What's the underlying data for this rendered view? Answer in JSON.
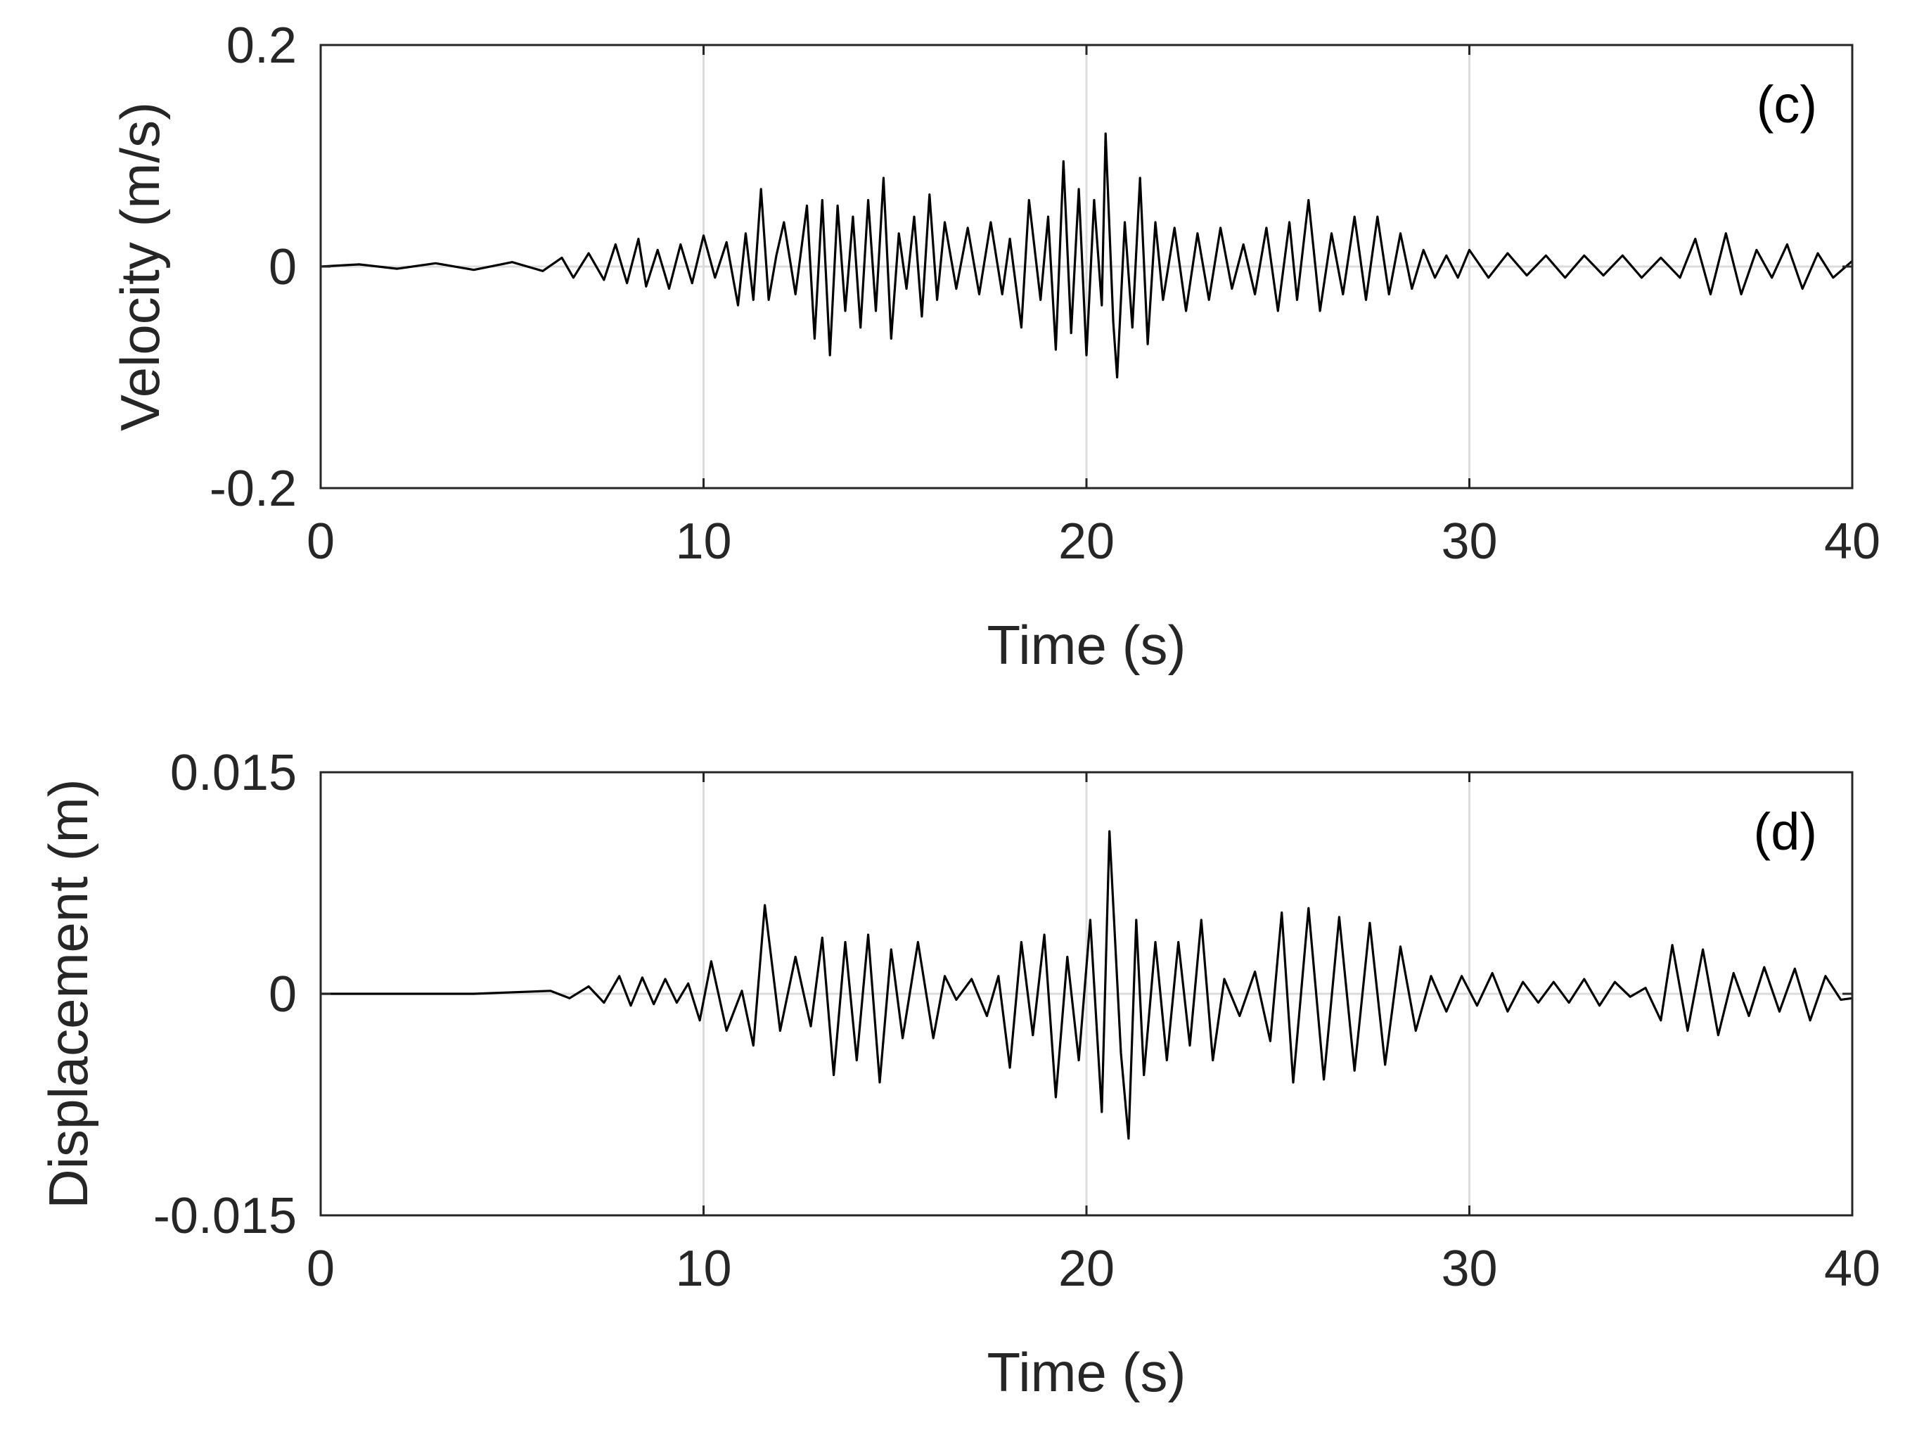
{
  "chart_data": [
    {
      "type": "line",
      "panel": "(c)",
      "xlabel": "Time (s)",
      "ylabel": "Velocity (m/s)",
      "xlim": [
        0,
        40
      ],
      "ylim": [
        -0.2,
        0.2
      ],
      "xticks": [
        0,
        10,
        20,
        30,
        40
      ],
      "xtick_labels": [
        "0",
        "10",
        "20",
        "30",
        "40"
      ],
      "yticks": [
        -0.2,
        0,
        0.2
      ],
      "ytick_labels": [
        "-0.2",
        "0",
        "0.2"
      ],
      "grid": "vertical",
      "line_color": "#000000",
      "series": [
        {
          "x": [
            0,
            1,
            2,
            3,
            4,
            5,
            5.8,
            6.3,
            6.6,
            7.0,
            7.4,
            7.7,
            8.0,
            8.3,
            8.5,
            8.8,
            9.1,
            9.4,
            9.7,
            10.0,
            10.3,
            10.6,
            10.9,
            11.1,
            11.3,
            11.5,
            11.7,
            11.9,
            12.1,
            12.4,
            12.7,
            12.9,
            13.1,
            13.3,
            13.5,
            13.7,
            13.9,
            14.1,
            14.3,
            14.5,
            14.7,
            14.9,
            15.1,
            15.3,
            15.5,
            15.7,
            15.9,
            16.1,
            16.3,
            16.6,
            16.9,
            17.2,
            17.5,
            17.8,
            18.0,
            18.3,
            18.5,
            18.8,
            19.0,
            19.2,
            19.4,
            19.6,
            19.8,
            20.0,
            20.2,
            20.4,
            20.5,
            20.7,
            20.8,
            21.0,
            21.2,
            21.4,
            21.6,
            21.8,
            22.0,
            22.3,
            22.6,
            22.9,
            23.2,
            23.5,
            23.8,
            24.1,
            24.4,
            24.7,
            25.0,
            25.3,
            25.5,
            25.8,
            26.1,
            26.4,
            26.7,
            27.0,
            27.3,
            27.6,
            27.9,
            28.2,
            28.5,
            28.8,
            29.1,
            29.4,
            29.7,
            30.0,
            30.5,
            31.0,
            31.5,
            32.0,
            32.5,
            33.0,
            33.5,
            34.0,
            34.5,
            35.0,
            35.5,
            35.9,
            36.3,
            36.7,
            37.1,
            37.5,
            37.9,
            38.3,
            38.7,
            39.1,
            39.5,
            40.0
          ],
          "y": [
            0,
            0.002,
            -0.002,
            0.003,
            -0.003,
            0.004,
            -0.004,
            0.008,
            -0.01,
            0.012,
            -0.012,
            0.02,
            -0.015,
            0.025,
            -0.018,
            0.015,
            -0.02,
            0.02,
            -0.015,
            0.028,
            -0.01,
            0.022,
            -0.035,
            0.03,
            -0.03,
            0.07,
            -0.03,
            0.01,
            0.04,
            -0.025,
            0.055,
            -0.065,
            0.06,
            -0.08,
            0.055,
            -0.04,
            0.045,
            -0.055,
            0.06,
            -0.04,
            0.08,
            -0.065,
            0.03,
            -0.02,
            0.045,
            -0.045,
            0.065,
            -0.03,
            0.04,
            -0.02,
            0.035,
            -0.025,
            0.04,
            -0.025,
            0.025,
            -0.055,
            0.06,
            -0.03,
            0.045,
            -0.075,
            0.095,
            -0.06,
            0.07,
            -0.08,
            0.06,
            -0.035,
            0.12,
            -0.05,
            -0.1,
            0.04,
            -0.055,
            0.08,
            -0.07,
            0.04,
            -0.03,
            0.035,
            -0.04,
            0.03,
            -0.03,
            0.035,
            -0.02,
            0.02,
            -0.025,
            0.035,
            -0.04,
            0.04,
            -0.03,
            0.06,
            -0.04,
            0.03,
            -0.025,
            0.045,
            -0.03,
            0.045,
            -0.025,
            0.03,
            -0.02,
            0.015,
            -0.01,
            0.01,
            -0.01,
            0.015,
            -0.01,
            0.012,
            -0.008,
            0.01,
            -0.01,
            0.01,
            -0.008,
            0.01,
            -0.01,
            0.008,
            -0.01,
            0.025,
            -0.025,
            0.03,
            -0.025,
            0.015,
            -0.01,
            0.02,
            -0.02,
            0.012,
            -0.01,
            0.005
          ]
        }
      ]
    },
    {
      "type": "line",
      "panel": "(d)",
      "xlabel": "Time (s)",
      "ylabel": "Displacement (m)",
      "xlim": [
        0,
        40
      ],
      "ylim": [
        -0.015,
        0.015
      ],
      "xticks": [
        0,
        10,
        20,
        30,
        40
      ],
      "xtick_labels": [
        "0",
        "10",
        "20",
        "30",
        "40"
      ],
      "yticks": [
        -0.015,
        0,
        0.015
      ],
      "ytick_labels": [
        "-0.015",
        "0",
        "0.015"
      ],
      "grid": "vertical",
      "line_color": "#000000",
      "series": [
        {
          "x": [
            0,
            2,
            4,
            6,
            6.5,
            7.0,
            7.4,
            7.8,
            8.1,
            8.4,
            8.7,
            9.0,
            9.3,
            9.6,
            9.9,
            10.2,
            10.6,
            11.0,
            11.3,
            11.6,
            12.0,
            12.4,
            12.8,
            13.1,
            13.4,
            13.7,
            14.0,
            14.3,
            14.6,
            14.9,
            15.2,
            15.6,
            16.0,
            16.3,
            16.6,
            17.0,
            17.4,
            17.7,
            18.0,
            18.3,
            18.6,
            18.9,
            19.2,
            19.5,
            19.8,
            20.1,
            20.4,
            20.6,
            20.9,
            21.1,
            21.3,
            21.5,
            21.8,
            22.1,
            22.4,
            22.7,
            23.0,
            23.3,
            23.6,
            24.0,
            24.4,
            24.8,
            25.1,
            25.4,
            25.8,
            26.2,
            26.6,
            27.0,
            27.4,
            27.8,
            28.2,
            28.6,
            29.0,
            29.4,
            29.8,
            30.2,
            30.6,
            31.0,
            31.4,
            31.8,
            32.2,
            32.6,
            33.0,
            33.4,
            33.8,
            34.2,
            34.6,
            35.0,
            35.3,
            35.7,
            36.1,
            36.5,
            36.9,
            37.3,
            37.7,
            38.1,
            38.5,
            38.9,
            39.3,
            39.7,
            40.0
          ],
          "y": [
            0,
            0,
            0,
            0.0002,
            -0.0003,
            0.0005,
            -0.0006,
            0.0012,
            -0.0008,
            0.0011,
            -0.0007,
            0.001,
            -0.0006,
            0.0007,
            -0.0018,
            0.0022,
            -0.0025,
            0.0002,
            -0.0035,
            0.006,
            -0.0025,
            0.0025,
            -0.0022,
            0.0038,
            -0.0055,
            0.0035,
            -0.0045,
            0.004,
            -0.006,
            0.003,
            -0.003,
            0.0035,
            -0.003,
            0.0012,
            -0.0004,
            0.001,
            -0.0015,
            0.0012,
            -0.005,
            0.0035,
            -0.0028,
            0.004,
            -0.007,
            0.0025,
            -0.0045,
            0.005,
            -0.008,
            0.011,
            -0.004,
            -0.0098,
            0.005,
            -0.0055,
            0.0035,
            -0.0045,
            0.0035,
            -0.0035,
            0.005,
            -0.0045,
            0.001,
            -0.0015,
            0.0015,
            -0.0032,
            0.0055,
            -0.006,
            0.0058,
            -0.0058,
            0.0052,
            -0.0052,
            0.0048,
            -0.0048,
            0.0032,
            -0.0025,
            0.0012,
            -0.0012,
            0.0012,
            -0.0008,
            0.0014,
            -0.0012,
            0.0008,
            -0.0006,
            0.0008,
            -0.0006,
            0.001,
            -0.0008,
            0.0008,
            -0.0002,
            0.0004,
            -0.0018,
            0.0033,
            -0.0025,
            0.003,
            -0.0028,
            0.0014,
            -0.0015,
            0.0018,
            -0.0012,
            0.0017,
            -0.0018,
            0.0012,
            -0.0004,
            -0.0003
          ]
        }
      ]
    }
  ]
}
